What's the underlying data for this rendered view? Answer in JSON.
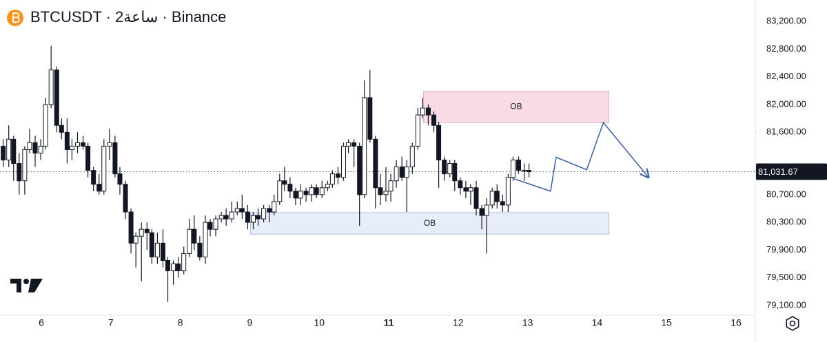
{
  "chart_data": {
    "type": "candlestick",
    "title": "BTCUSDT · 2ساعة · Binance",
    "x": [
      5.45,
      5.53,
      5.6,
      5.68,
      5.76,
      5.83,
      5.91,
      5.99,
      6.06,
      6.14,
      6.22,
      6.29,
      6.37,
      6.44,
      6.52,
      6.6,
      6.67,
      6.75,
      6.83,
      6.9,
      6.98,
      7.06,
      7.13,
      7.21,
      7.29,
      7.36,
      7.44,
      7.52,
      7.59,
      7.67,
      7.75,
      7.82,
      7.9,
      7.97,
      8.05,
      8.13,
      8.2,
      8.28,
      8.36,
      8.43,
      8.51,
      8.59,
      8.66,
      8.74,
      8.82,
      8.89,
      8.97,
      9.05,
      9.12,
      9.2,
      9.28,
      9.35,
      9.43,
      9.5,
      9.58,
      9.66,
      9.73,
      9.81,
      9.89,
      9.96,
      10.04,
      10.12,
      10.19,
      10.27,
      10.35,
      10.42,
      10.5,
      10.58,
      10.65,
      10.73,
      10.81,
      10.88,
      10.96,
      11.03,
      11.11,
      11.19,
      11.26,
      11.34,
      11.42,
      11.49,
      11.57,
      11.65,
      11.72,
      11.8,
      11.88,
      11.95,
      12.03,
      12.11,
      12.18,
      12.26,
      12.34,
      12.41,
      12.49,
      12.56,
      12.64,
      12.72,
      12.79,
      12.87,
      12.95,
      13.02
    ],
    "open": [
      81400,
      81200,
      81500,
      81150,
      80900,
      81350,
      81450,
      81300,
      81400,
      82000,
      82500,
      81700,
      81600,
      81350,
      81400,
      81450,
      81400,
      81050,
      80850,
      80750,
      81400,
      81450,
      81000,
      80850,
      80450,
      80000,
      80100,
      80200,
      80150,
      79800,
      80000,
      79750,
      79600,
      79700,
      79600,
      79850,
      80200,
      80000,
      79800,
      80300,
      80200,
      80350,
      80400,
      80350,
      80450,
      80500,
      80450,
      80300,
      80400,
      80350,
      80500,
      80450,
      80600,
      80900,
      80850,
      80750,
      80650,
      80750,
      80700,
      80800,
      80700,
      80800,
      80850,
      81000,
      80950,
      81400,
      81450,
      81400,
      80700,
      82100,
      81500,
      80800,
      80700,
      80750,
      80900,
      81100,
      80950,
      81100,
      81400,
      81850,
      81950,
      81850,
      81700,
      81200,
      81000,
      81150,
      80900,
      80800,
      80750,
      80800,
      80500,
      80400,
      80550,
      80750,
      80600,
      80550,
      80950,
      81200,
      81050,
      81050
    ],
    "high": [
      81500,
      81700,
      81550,
      81300,
      81400,
      81650,
      81550,
      81500,
      82100,
      82850,
      82550,
      81800,
      81800,
      81500,
      81600,
      81550,
      81450,
      81100,
      81000,
      81500,
      81650,
      81550,
      81100,
      80900,
      80500,
      80150,
      80300,
      80300,
      80200,
      80150,
      80200,
      79800,
      79750,
      79800,
      79950,
      80350,
      80400,
      80100,
      80400,
      80350,
      80400,
      80450,
      80500,
      80600,
      80600,
      80700,
      80550,
      80450,
      80500,
      80550,
      80550,
      80700,
      81000,
      81100,
      80950,
      80800,
      80850,
      80800,
      80850,
      80850,
      80900,
      80900,
      81050,
      81100,
      81450,
      81500,
      81500,
      81450,
      82350,
      82500,
      81550,
      81000,
      81100,
      81000,
      81200,
      81250,
      81200,
      81450,
      81950,
      82100,
      82000,
      81900,
      81750,
      81250,
      81200,
      81200,
      80950,
      80900,
      80850,
      80900,
      80550,
      80650,
      80800,
      80850,
      80700,
      81000,
      81250,
      81250,
      81150,
      81150
    ],
    "low": [
      81100,
      81100,
      80900,
      80700,
      80700,
      81300,
      81100,
      81200,
      81350,
      81950,
      81600,
      81500,
      81150,
      81200,
      81300,
      81350,
      80950,
      80750,
      80700,
      80700,
      81200,
      80950,
      80700,
      80350,
      79850,
      79650,
      79450,
      79900,
      79700,
      79700,
      79650,
      79150,
      79400,
      79500,
      79550,
      79800,
      79900,
      79750,
      79700,
      80100,
      80100,
      80300,
      80250,
      80300,
      80400,
      80350,
      80200,
      80200,
      80250,
      80300,
      80300,
      80400,
      80550,
      80750,
      80650,
      80550,
      80550,
      80600,
      80600,
      80650,
      80650,
      80750,
      80800,
      80850,
      80900,
      81300,
      81100,
      80250,
      80650,
      81450,
      80500,
      80550,
      80600,
      80600,
      80800,
      80900,
      80450,
      81000,
      81350,
      81800,
      81700,
      81600,
      80800,
      80900,
      80950,
      80750,
      80700,
      80650,
      80550,
      80400,
      80200,
      79850,
      80500,
      80500,
      80450,
      80450,
      80900,
      81000,
      80900,
      80950
    ],
    "close": [
      81200,
      81500,
      81150,
      80900,
      81350,
      81450,
      81300,
      81400,
      82000,
      82500,
      81700,
      81600,
      81350,
      81400,
      81450,
      81400,
      81050,
      80850,
      80750,
      81400,
      81450,
      81000,
      80850,
      80450,
      80000,
      80100,
      80200,
      80150,
      79800,
      80000,
      79750,
      79600,
      79700,
      79600,
      79850,
      80200,
      80000,
      79800,
      80300,
      80200,
      80350,
      80400,
      80350,
      80450,
      80500,
      80450,
      80300,
      80400,
      80350,
      80500,
      80450,
      80600,
      80900,
      80850,
      80750,
      80650,
      80750,
      80700,
      80800,
      80700,
      80800,
      80850,
      81000,
      80950,
      81400,
      81450,
      81400,
      80700,
      82100,
      81500,
      80800,
      80700,
      80750,
      80900,
      81100,
      80950,
      81100,
      81400,
      81850,
      81950,
      81850,
      81700,
      81200,
      81000,
      81150,
      80900,
      80800,
      80750,
      80800,
      80500,
      80400,
      80550,
      80750,
      80600,
      80550,
      80950,
      81200,
      81050,
      81050,
      81030
    ],
    "up_color": "#ffffff",
    "down_color": "#131722",
    "wick_color": "#131722",
    "xlim": [
      5.404,
      16.278
    ],
    "ylim": [
      78960,
      83510
    ],
    "xticks": [
      6,
      7,
      8,
      9,
      10,
      11,
      12,
      13,
      14,
      15,
      16
    ],
    "bold_xticks": [
      11
    ],
    "yticks": [
      {
        "value": 79100,
        "label": "79,100.00"
      },
      {
        "value": 79500,
        "label": "79,500.00"
      },
      {
        "value": 79900,
        "label": "79,900.00"
      },
      {
        "value": 80300,
        "label": "80,300.00"
      },
      {
        "value": 80700,
        "label": "80,700.00"
      },
      {
        "value": 81600,
        "label": "81,600.00"
      },
      {
        "value": 82000,
        "label": "82,000.00"
      },
      {
        "value": 82400,
        "label": "82,400.00"
      },
      {
        "value": 82800,
        "label": "82,800.00"
      },
      {
        "value": 83200,
        "label": "83,200.00"
      }
    ],
    "grid": false,
    "last_price": {
      "value": 81031.67,
      "label": "81,031.67"
    },
    "zones": [
      {
        "label": "OB",
        "x": [
          11.5,
          14.17
        ],
        "y": [
          81740,
          82190
        ],
        "color": "#f7dbe5",
        "border": "#e8a9bd"
      },
      {
        "label": "OB",
        "x": [
          9.01,
          14.17
        ],
        "y": [
          80130,
          80440
        ],
        "color": "#e7eefa",
        "border": "#a9bbdb"
      }
    ],
    "projection": {
      "color": "#3a5ba8",
      "x": [
        12.8,
        13.33,
        13.41,
        13.85,
        14.09,
        14.74
      ],
      "y": [
        80930,
        80750,
        81240,
        81060,
        81740,
        80950
      ]
    }
  }
}
